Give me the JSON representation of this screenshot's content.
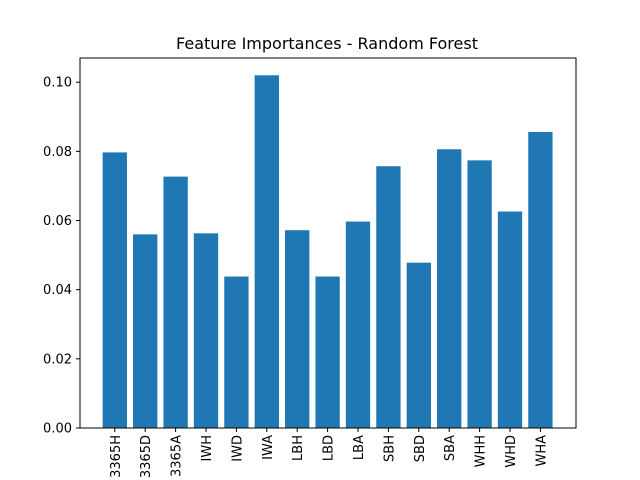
{
  "chart_data": {
    "type": "bar",
    "title": "Feature Importances - Random Forest",
    "xlabel": "",
    "ylabel": "",
    "categories": [
      "3365H",
      "3365D",
      "3365A",
      "IWH",
      "IWD",
      "IWA",
      "LBH",
      "LBD",
      "LBA",
      "SBH",
      "SBD",
      "SBA",
      "WHH",
      "WHD",
      "WHA"
    ],
    "values": [
      0.0797,
      0.056,
      0.0727,
      0.0563,
      0.0438,
      0.102,
      0.0572,
      0.0438,
      0.0597,
      0.0757,
      0.0478,
      0.0806,
      0.0774,
      0.0626,
      0.0856
    ],
    "ylim": [
      0,
      0.107
    ],
    "yticks": [
      0.0,
      0.02,
      0.04,
      0.06,
      0.08,
      0.1
    ],
    "ytick_labels": [
      "0.00",
      "0.02",
      "0.04",
      "0.06",
      "0.08",
      "0.10"
    ],
    "bar_color": "#1f77b4",
    "grid": false
  }
}
